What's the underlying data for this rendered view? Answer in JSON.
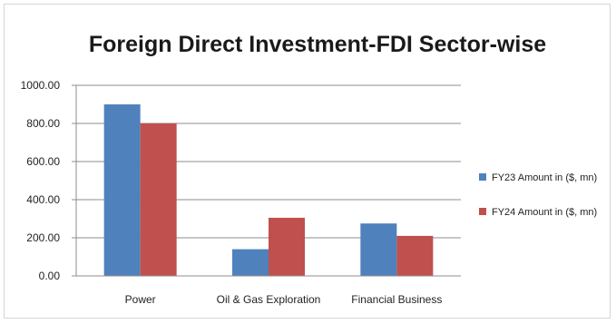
{
  "chart_data": {
    "type": "bar",
    "title": "Foreign Direct Investment-FDI Sector-wise",
    "categories": [
      "Power",
      "Oil & Gas Exploration",
      "Financial Business"
    ],
    "series": [
      {
        "name": "FY23 Amount in ($, mn)",
        "values": [
          900,
          140,
          275
        ],
        "color": "#4f81bd"
      },
      {
        "name": "FY24 Amount in ($, mn)",
        "values": [
          800,
          305,
          210
        ],
        "color": "#c0504d"
      }
    ],
    "yticks": [
      "0.00",
      "200.00",
      "400.00",
      "600.00",
      "800.00",
      "1000.00"
    ],
    "ylim": [
      0,
      1000
    ],
    "grid": true,
    "legend_position": "right"
  }
}
